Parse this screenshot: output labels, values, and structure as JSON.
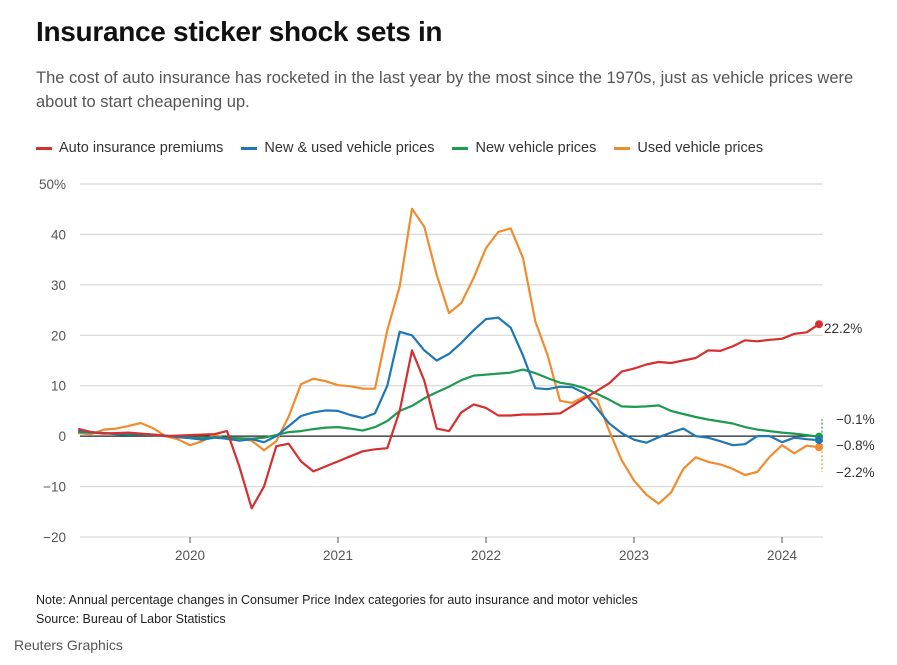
{
  "header": {
    "title": "Insurance sticker shock sets in",
    "subtitle": "The cost of auto insurance has rocketed in the last year by the most since the 1970s, just as vehicle prices were about to start cheapening up."
  },
  "legend": [
    {
      "label": "Auto insurance premiums",
      "color": "#d62f2f"
    },
    {
      "label": "New & used vehicle prices",
      "color": "#1f77b4"
    },
    {
      "label": "New vehicle prices",
      "color": "#1e9a4e"
    },
    {
      "label": "Used vehicle prices",
      "color": "#f08c2e"
    }
  ],
  "footer": {
    "note": "Note: Annual percentage changes in Consumer Price Index categories for auto insurance and motor vehicles",
    "source": "Source: Bureau of Labor Statistics",
    "credit": "Reuters Graphics"
  },
  "chart_data": {
    "type": "line",
    "title": "",
    "xlabel": "",
    "ylabel": "",
    "ylim": [
      -20,
      50
    ],
    "y_ticks": [
      -20,
      -10,
      0,
      10,
      20,
      30,
      40,
      50
    ],
    "y_tick_labels": [
      "−20",
      "−10",
      "0",
      "10",
      "20",
      "30",
      "40",
      "50%"
    ],
    "x_ticks": [
      2020,
      2021,
      2022,
      2023,
      2024
    ],
    "x_tick_labels": [
      "2020",
      "2021",
      "2022",
      "2023",
      "2024"
    ],
    "grid": "horizontal",
    "legend_position": "top-left",
    "x": [
      2019.25,
      2019.333,
      2019.417,
      2019.5,
      2019.583,
      2019.667,
      2019.75,
      2019.833,
      2019.917,
      2020.0,
      2020.083,
      2020.167,
      2020.25,
      2020.333,
      2020.417,
      2020.5,
      2020.583,
      2020.667,
      2020.75,
      2020.833,
      2020.917,
      2021.0,
      2021.083,
      2021.167,
      2021.25,
      2021.333,
      2021.417,
      2021.5,
      2021.583,
      2021.667,
      2021.75,
      2021.833,
      2021.917,
      2022.0,
      2022.083,
      2022.167,
      2022.25,
      2022.333,
      2022.417,
      2022.5,
      2022.583,
      2022.667,
      2022.75,
      2022.833,
      2022.917,
      2023.0,
      2023.083,
      2023.167,
      2023.25,
      2023.333,
      2023.417,
      2023.5,
      2023.583,
      2023.667,
      2023.75,
      2023.833,
      2023.917,
      2024.0,
      2024.083,
      2024.167,
      2024.25
    ],
    "series": [
      {
        "name": "Auto insurance premiums",
        "color": "#d62f2f",
        "end_label": "22.2%",
        "values": [
          1.4,
          0.8,
          0.5,
          0.6,
          0.7,
          0.5,
          0.3,
          0.0,
          0.1,
          0.2,
          0.3,
          0.4,
          1.0,
          -6.0,
          -14.3,
          -10.0,
          -2.0,
          -1.5,
          -5.0,
          -7.0,
          -6.0,
          -5.0,
          -4.0,
          -3.0,
          -2.6,
          -2.4,
          5.0,
          17.0,
          11.0,
          1.5,
          1.0,
          4.7,
          6.3,
          5.6,
          4.1,
          4.1,
          4.3,
          4.3,
          4.4,
          4.5,
          6.0,
          7.5,
          9.0,
          10.5,
          12.8,
          13.4,
          14.2,
          14.7,
          14.5,
          15.0,
          15.5,
          17.0,
          16.9,
          17.8,
          19.0,
          18.8,
          19.1,
          19.3,
          20.3,
          20.6,
          22.2
        ]
      },
      {
        "name": "New & used vehicle prices",
        "color": "#1f77b4",
        "end_label": "−0.8%",
        "values": [
          1.0,
          0.8,
          0.6,
          0.5,
          0.5,
          0.4,
          0.3,
          0.1,
          -0.2,
          -0.4,
          -0.7,
          -0.3,
          -0.5,
          -0.9,
          -0.6,
          -1.2,
          0.0,
          2.0,
          4.0,
          4.7,
          5.1,
          5.0,
          4.2,
          3.6,
          4.5,
          10.0,
          20.7,
          20.0,
          17.0,
          15.0,
          16.3,
          18.5,
          21.0,
          23.2,
          23.5,
          21.5,
          16.0,
          9.5,
          9.3,
          9.8,
          9.7,
          8.5,
          5.5,
          2.5,
          0.6,
          -0.7,
          -1.3,
          -0.2,
          0.7,
          1.5,
          0.0,
          -0.3,
          -1.0,
          -1.8,
          -1.6,
          0.0,
          0.0,
          -1.2,
          -0.3,
          -0.6,
          -0.8
        ]
      },
      {
        "name": "New vehicle prices",
        "color": "#1e9a4e",
        "end_label": "−0.1%",
        "values": [
          0.8,
          0.7,
          0.6,
          0.4,
          0.3,
          0.3,
          0.2,
          0.1,
          -0.1,
          -0.3,
          -0.4,
          -0.2,
          -0.3,
          -0.4,
          -0.5,
          -0.3,
          0.2,
          0.8,
          1.0,
          1.4,
          1.7,
          1.8,
          1.5,
          1.1,
          1.8,
          3.0,
          5.0,
          6.0,
          7.5,
          8.7,
          9.8,
          11.1,
          12.0,
          12.2,
          12.4,
          12.6,
          13.2,
          12.5,
          11.5,
          10.6,
          10.2,
          9.5,
          8.4,
          7.2,
          5.9,
          5.8,
          5.9,
          6.1,
          5.0,
          4.4,
          3.8,
          3.3,
          2.9,
          2.5,
          1.8,
          1.3,
          1.0,
          0.7,
          0.5,
          0.2,
          -0.1
        ]
      },
      {
        "name": "Used vehicle prices",
        "color": "#f08c2e",
        "end_label": "−2.2%",
        "values": [
          0.6,
          0.4,
          1.3,
          1.5,
          2.0,
          2.6,
          1.6,
          0.0,
          -0.6,
          -1.8,
          -1.0,
          0.3,
          -0.6,
          -0.5,
          -0.9,
          -2.8,
          -1.0,
          3.9,
          10.3,
          11.4,
          10.9,
          10.1,
          9.9,
          9.4,
          9.4,
          21.0,
          29.7,
          45.1,
          41.5,
          32.0,
          24.4,
          26.4,
          31.4,
          37.3,
          40.5,
          41.2,
          35.3,
          22.8,
          16.0,
          7.0,
          6.6,
          7.9,
          7.3,
          1.0,
          -4.8,
          -8.8,
          -11.6,
          -13.4,
          -11.2,
          -6.5,
          -4.2,
          -5.1,
          -5.6,
          -6.5,
          -7.7,
          -7.1,
          -4.1,
          -1.8,
          -3.4,
          -1.9,
          -2.2
        ]
      }
    ]
  }
}
